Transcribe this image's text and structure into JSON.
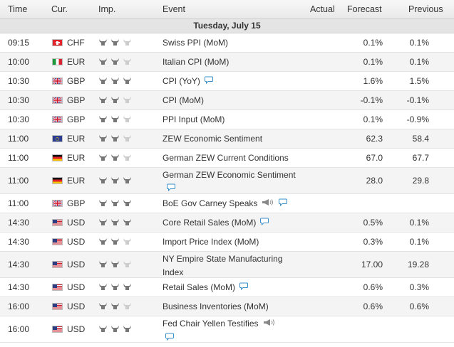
{
  "headers": {
    "time": "Time",
    "cur": "Cur.",
    "imp": "Imp.",
    "event": "Event",
    "actual": "Actual",
    "forecast": "Forecast",
    "previous": "Previous"
  },
  "day_label": "Tuesday, July 15",
  "colors": {
    "bull_on": "#777777",
    "bull_off": "#cccccc",
    "comment_icon": "#3a8fc9"
  },
  "rows": [
    {
      "time": "09:15",
      "flag": "switzerland-flag",
      "cur": "CHF",
      "imp": 2,
      "event": "Swiss PPI (MoM)",
      "actual": "",
      "forecast": "0.1%",
      "previous": "0.1%"
    },
    {
      "time": "10:00",
      "flag": "italy-flag",
      "cur": "EUR",
      "imp": 2,
      "event": "Italian CPI (MoM)",
      "actual": "",
      "forecast": "0.1%",
      "previous": "0.1%"
    },
    {
      "time": "10:30",
      "flag": "uk-flag",
      "cur": "GBP",
      "imp": 3,
      "event": "CPI (YoY)",
      "comment": true,
      "actual": "",
      "forecast": "1.6%",
      "previous": "1.5%"
    },
    {
      "time": "10:30",
      "flag": "uk-flag",
      "cur": "GBP",
      "imp": 2,
      "event": "CPI (MoM)",
      "actual": "",
      "forecast": "-0.1%",
      "previous": "-0.1%"
    },
    {
      "time": "10:30",
      "flag": "uk-flag",
      "cur": "GBP",
      "imp": 2,
      "event": "PPI Input (MoM)",
      "actual": "",
      "forecast": "0.1%",
      "previous": "-0.9%"
    },
    {
      "time": "11:00",
      "flag": "eu-flag",
      "cur": "EUR",
      "imp": 2,
      "event": "ZEW Economic Sentiment",
      "actual": "",
      "forecast": "62.3",
      "previous": "58.4"
    },
    {
      "time": "11:00",
      "flag": "germany-flag",
      "cur": "EUR",
      "imp": 2,
      "event": "German ZEW Current Conditions",
      "actual": "",
      "forecast": "67.0",
      "previous": "67.7"
    },
    {
      "time": "11:00",
      "flag": "germany-flag",
      "cur": "EUR",
      "imp": 3,
      "event": "German ZEW Economic Sentiment",
      "comment": true,
      "actual": "",
      "forecast": "28.0",
      "previous": "29.8"
    },
    {
      "time": "11:00",
      "flag": "uk-flag",
      "cur": "GBP",
      "imp": 3,
      "event": "BoE Gov Carney Speaks",
      "speaker": true,
      "comment": true,
      "actual": "",
      "forecast": "",
      "previous": ""
    },
    {
      "time": "14:30",
      "flag": "us-flag",
      "cur": "USD",
      "imp": 3,
      "event": "Core Retail Sales (MoM)",
      "comment": true,
      "actual": "",
      "forecast": "0.5%",
      "previous": "0.1%"
    },
    {
      "time": "14:30",
      "flag": "us-flag",
      "cur": "USD",
      "imp": 2,
      "event": "Import Price Index (MoM)",
      "actual": "",
      "forecast": "0.3%",
      "previous": "0.1%"
    },
    {
      "time": "14:30",
      "flag": "us-flag",
      "cur": "USD",
      "imp": 2,
      "event": "NY Empire State Manufacturing Index",
      "actual": "",
      "forecast": "17.00",
      "previous": "19.28"
    },
    {
      "time": "14:30",
      "flag": "us-flag",
      "cur": "USD",
      "imp": 3,
      "event": "Retail Sales (MoM)",
      "comment": true,
      "actual": "",
      "forecast": "0.6%",
      "previous": "0.3%"
    },
    {
      "time": "16:00",
      "flag": "us-flag",
      "cur": "USD",
      "imp": 2,
      "event": "Business Inventories (MoM)",
      "actual": "",
      "forecast": "0.6%",
      "previous": "0.6%"
    },
    {
      "time": "16:00",
      "flag": "us-flag",
      "cur": "USD",
      "imp": 3,
      "event": "Fed Chair Yellen Testifies",
      "speaker": true,
      "comment": true,
      "actual": "",
      "forecast": "",
      "previous": ""
    }
  ]
}
